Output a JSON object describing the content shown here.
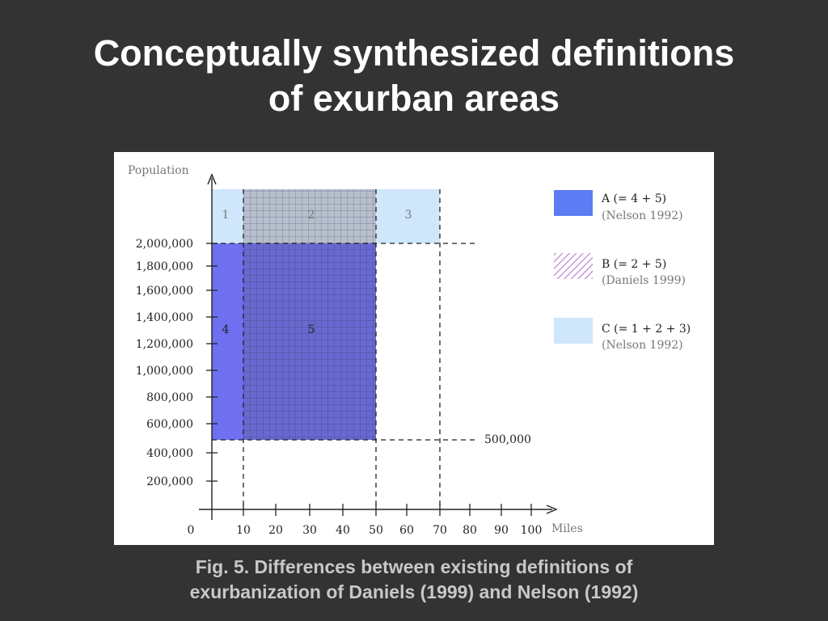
{
  "slide": {
    "title_line1": "Conceptually synthesized definitions",
    "title_line2": "of exurban areas",
    "caption_line1": "Fig. 5. Differences between existing definitions of",
    "caption_line2": "exurbanization of Daniels (1999) and Nelson (1992)"
  },
  "figure": {
    "y_axis_label": "Population",
    "x_axis_label": "Miles",
    "y_ticks": [
      "200,000",
      "400,000",
      "600,000",
      "800,000",
      "1,000,000",
      "1,200,000",
      "1,400,000",
      "1,600,000",
      "1,800,000",
      "2,000,000"
    ],
    "x_ticks": [
      "0",
      "10",
      "20",
      "30",
      "40",
      "50",
      "60",
      "70",
      "80",
      "90",
      "100"
    ],
    "threshold_high": "2,000,000",
    "threshold_low": "500,000",
    "regions": [
      {
        "id": "1",
        "label": "1",
        "x_from": 0,
        "x_to": 10,
        "pop_from": 2000000,
        "pop_to": null
      },
      {
        "id": "2",
        "label": "2",
        "x_from": 10,
        "x_to": 50,
        "pop_from": 2000000,
        "pop_to": null
      },
      {
        "id": "3",
        "label": "3",
        "x_from": 50,
        "x_to": 70,
        "pop_from": 2000000,
        "pop_to": null
      },
      {
        "id": "4",
        "label": "4",
        "x_from": 0,
        "x_to": 10,
        "pop_from": 500000,
        "pop_to": 2000000
      },
      {
        "id": "5",
        "label": "5",
        "x_from": 10,
        "x_to": 50,
        "pop_from": 500000,
        "pop_to": 2000000
      }
    ],
    "legend": [
      {
        "key": "A",
        "label": "A (= 4 + 5)",
        "source": "(Nelson 1992)",
        "color": "#5b7cf2"
      },
      {
        "key": "B",
        "label": "B (= 2 + 5)",
        "source": "(Daniels 1999)",
        "color": "#c89ad6"
      },
      {
        "key": "C",
        "label": "C (= 1 + 2 + 3)",
        "source": "(Nelson 1992)",
        "color": "#cfe6fb"
      }
    ],
    "colors": {
      "region_A": "#6f6ff0",
      "region_C": "#cfe6fb",
      "region_5": "#6868cf",
      "region_2": "#b6bfcc",
      "grid_hatch": "#2a2a55"
    }
  }
}
